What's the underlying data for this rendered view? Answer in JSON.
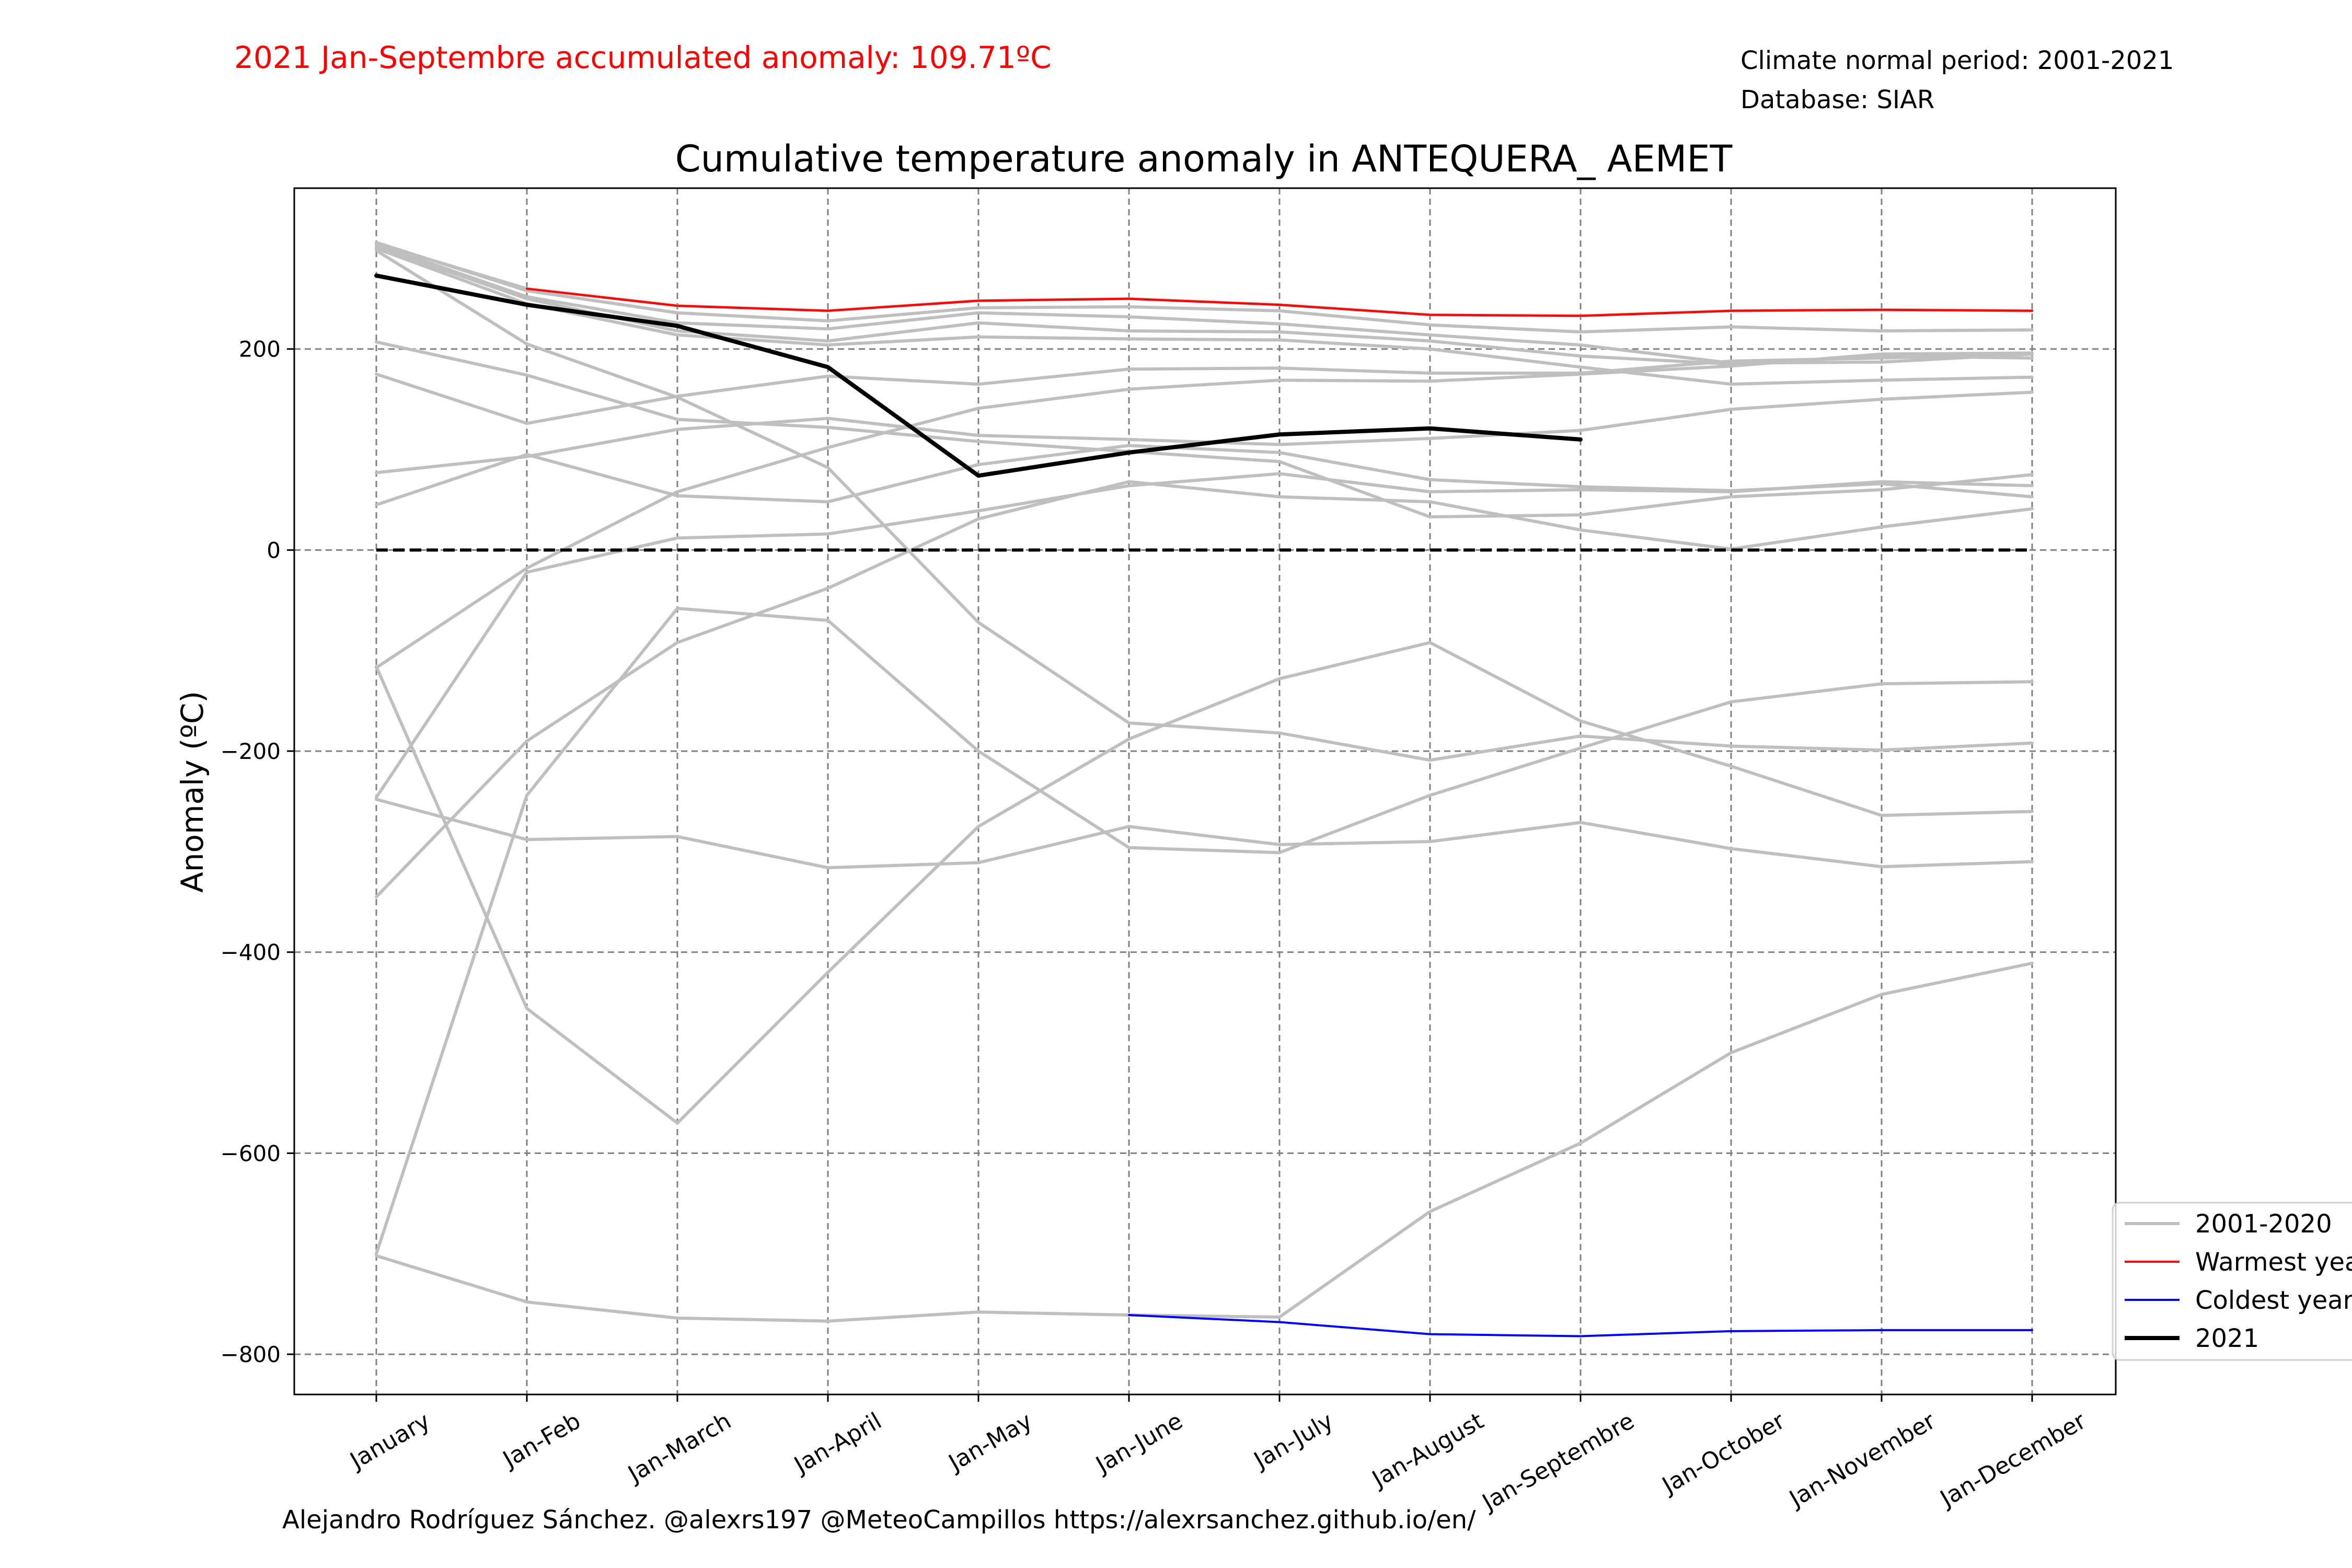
{
  "header": {
    "accumulated_text": "2021 Jan-Septembre accumulated anomaly: 109.71ºC",
    "normal_period_text": "Climate normal period: 2001-2021",
    "database_text": "Database: SIAR"
  },
  "footer": {
    "credit_text": "Alejandro Rodríguez Sánchez. @alexrs197 @MeteoCampillos   https://alexrsanchez.github.io/en/"
  },
  "colors": {
    "history": "#bfbfbf",
    "warmest": "#ff0000",
    "coldest": "#0000ff",
    "current": "#000000",
    "accent_text": "#ff0000",
    "grid": "#808080"
  },
  "chart_data": {
    "type": "line",
    "title": "Cumulative temperature anomaly in ANTEQUERA_ AEMET",
    "xlabel": "",
    "ylabel": "Anomaly (ºC)",
    "ylim": [
      -840,
      360
    ],
    "yticks": [
      200,
      0,
      -200,
      -400,
      -600,
      -800
    ],
    "ytick_labels": [
      "200",
      "0",
      "−200",
      "−400",
      "−600",
      "−800"
    ],
    "grid": true,
    "legend_position": "lower-right",
    "categories": [
      "January",
      "Jan-Feb",
      "Jan-March",
      "Jan-April",
      "Jan-May",
      "Jan-June",
      "Jan-July",
      "Jan-August",
      "Jan-Septembre",
      "Jan-October",
      "Jan-November",
      "Jan-December"
    ],
    "legend": [
      {
        "label": "2001-2020",
        "style": "history"
      },
      {
        "label": "Warmest year",
        "style": "warmest"
      },
      {
        "label": "Coldest year",
        "style": "coldest"
      },
      {
        "label": "2021",
        "style": "current"
      }
    ],
    "reference_line": {
      "y": 0,
      "style": "dashed"
    },
    "historical_series": [
      {
        "values": [
          305,
          260,
          243,
          238,
          248,
          250,
          244,
          234,
          233,
          238,
          239,
          238
        ]
      },
      {
        "values": [
          306,
          258,
          236,
          228,
          241,
          242,
          238,
          224,
          217,
          222,
          218,
          219
        ]
      },
      {
        "values": [
          304,
          252,
          226,
          220,
          236,
          232,
          225,
          214,
          204,
          186,
          187,
          195
        ]
      },
      {
        "values": [
          302,
          250,
          218,
          208,
          226,
          218,
          217,
          208,
          193,
          185,
          193,
          191
        ]
      },
      {
        "values": [
          300,
          245,
          214,
          204,
          212,
          210,
          209,
          200,
          182,
          165,
          169,
          172
        ]
      },
      {
        "values": [
          298,
          205,
          152,
          82,
          -72,
          -172,
          -182,
          -209,
          -185,
          -195,
          -199,
          -192
        ]
      },
      {
        "values": [
          207,
          174,
          130,
          122,
          108,
          98,
          88,
          33,
          35,
          53,
          60,
          75
        ]
      },
      {
        "values": [
          175,
          126,
          153,
          173,
          165,
          180,
          181,
          176,
          176,
          188,
          191,
          195
        ]
      },
      {
        "values": [
          77,
          93,
          120,
          131,
          114,
          110,
          105,
          111,
          119,
          140,
          150,
          157
        ]
      },
      {
        "values": [
          45,
          95,
          54,
          48,
          85,
          104,
          97,
          70,
          63,
          59,
          66,
          53
        ]
      },
      {
        "values": [
          -117,
          -18,
          58,
          102,
          141,
          160,
          169,
          168,
          175,
          183,
          195,
          196
        ]
      },
      {
        "values": [
          -248,
          -288,
          -285,
          -316,
          -311,
          -275,
          -293,
          -290,
          -271,
          -297,
          -315,
          -310
        ]
      },
      {
        "values": [
          -246,
          -22,
          12,
          16,
          39,
          64,
          76,
          58,
          60,
          58,
          68,
          64
        ]
      },
      {
        "values": [
          -345,
          -190,
          -92,
          -38,
          31,
          68,
          53,
          48,
          20,
          1,
          23,
          41
        ]
      },
      {
        "values": [
          -116,
          -456,
          -570,
          -420,
          -275,
          -188,
          -128,
          -92,
          -170,
          -215,
          -264,
          -260
        ]
      },
      {
        "values": [
          -700,
          -244,
          -58,
          -70,
          -200,
          -296,
          -301,
          -244,
          -197,
          -151,
          -133,
          -131
        ]
      },
      {
        "values": [
          -702,
          -748,
          -764,
          -767,
          -758,
          -761,
          -763,
          -658,
          -590,
          -500,
          -442,
          -411
        ]
      }
    ],
    "warmest_series": {
      "from_index": 1,
      "values": [
        305,
        260,
        243,
        238,
        248,
        250,
        244,
        234,
        233,
        238,
        239,
        238
      ]
    },
    "coldest_series": {
      "from_index": 5,
      "values": [
        -702,
        -748,
        -764,
        -767,
        -758,
        -761,
        -768,
        -780,
        -782,
        -777,
        -776,
        -776
      ]
    },
    "current_series": {
      "name": "2021",
      "values": [
        273,
        244,
        223,
        182,
        74,
        97,
        115,
        121,
        110
      ]
    }
  }
}
